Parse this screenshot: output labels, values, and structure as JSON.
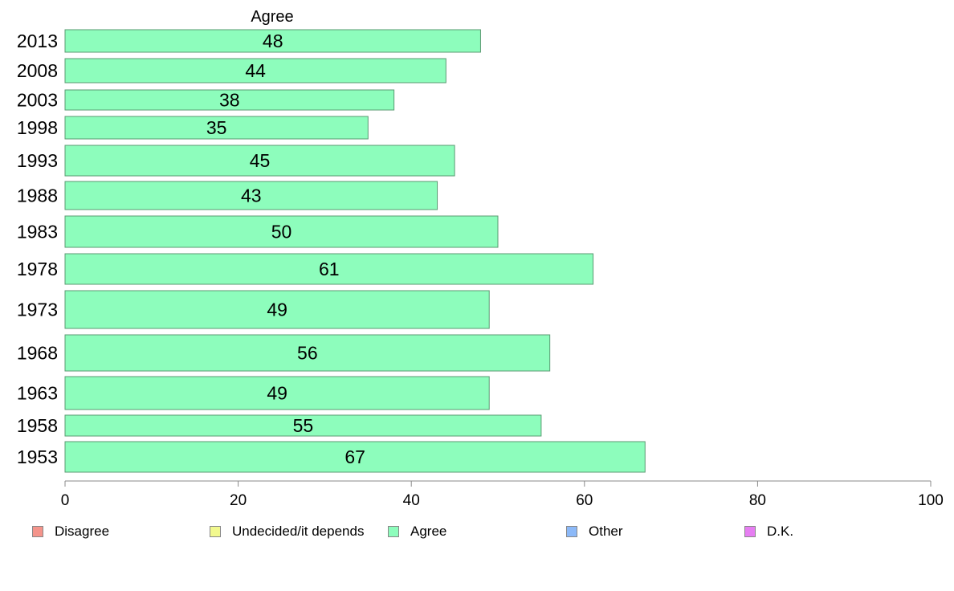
{
  "chart_data": {
    "type": "bar",
    "orientation": "horizontal",
    "series_header": "Agree",
    "categories": [
      "2013",
      "2008",
      "2003",
      "1998",
      "1993",
      "1988",
      "1983",
      "1978",
      "1973",
      "1968",
      "1963",
      "1958",
      "1953"
    ],
    "series": [
      {
        "name": "Agree",
        "values": [
          48,
          44,
          38,
          35,
          45,
          43,
          50,
          61,
          49,
          56,
          49,
          55,
          67
        ]
      }
    ],
    "xlim": [
      0,
      100
    ],
    "xticks": [
      0,
      20,
      40,
      60,
      80,
      100
    ],
    "grid": false,
    "legend": {
      "position": "bottom",
      "items": [
        {
          "label": "Disagree",
          "color": "#f4948b"
        },
        {
          "label": "Undecided/it depends",
          "color": "#f2f98e"
        },
        {
          "label": "Agree",
          "color": "#8dfdbc"
        },
        {
          "label": "Other",
          "color": "#8cb9f8"
        },
        {
          "label": "D.K.",
          "color": "#e67ef2"
        }
      ]
    },
    "bar_color": "#8dfdbc",
    "bar_edge_color": "#5a9a72"
  }
}
